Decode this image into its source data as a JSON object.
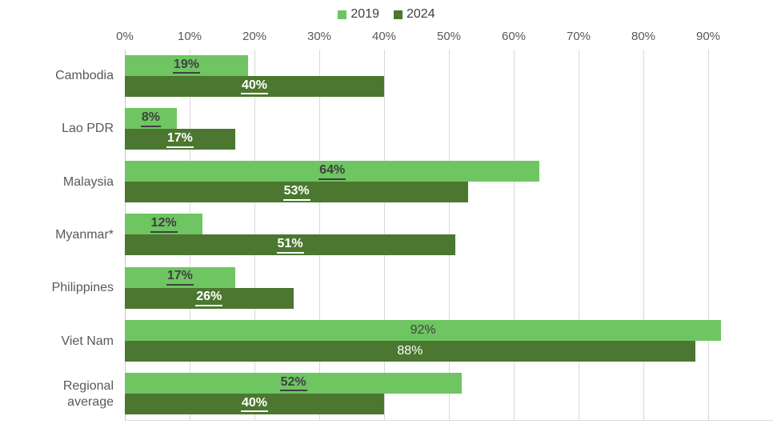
{
  "chart_data": {
    "type": "bar",
    "orientation": "horizontal",
    "title": "",
    "xlabel": "",
    "ylabel": "",
    "xlim": [
      0,
      100
    ],
    "grid": true,
    "legend_position": "top",
    "x_ticks": [
      "0%",
      "10%",
      "20%",
      "30%",
      "40%",
      "50%",
      "60%",
      "70%",
      "80%",
      "90%"
    ],
    "categories": [
      "Cambodia",
      "Lao PDR",
      "Malaysia",
      "Myanmar*",
      "Philippines",
      "Viet Nam",
      "Regional average"
    ],
    "series": [
      {
        "name": "2019",
        "color": "#6ec562",
        "label_color": "#404040",
        "values": [
          19,
          8,
          64,
          12,
          17,
          92,
          52
        ],
        "labels": [
          "19%",
          "8%",
          "64%",
          "12%",
          "17%",
          "92%",
          "52%"
        ]
      },
      {
        "name": "2024",
        "color": "#4b7730",
        "label_color": "#ffffff",
        "values": [
          40,
          17,
          53,
          51,
          26,
          88,
          40
        ],
        "labels": [
          "40%",
          "17%",
          "53%",
          "51%",
          "26%",
          "88%",
          "40%"
        ]
      }
    ],
    "value_label_emphasis": [
      true,
      true,
      true,
      true,
      true,
      false,
      true
    ]
  },
  "colors": {
    "background": "#ffffff",
    "gridline": "#d9d9d9",
    "axis_line": "#c8c8c8",
    "tick_text": "#595959",
    "category_text": "#595959",
    "legend_text": "#404040"
  }
}
